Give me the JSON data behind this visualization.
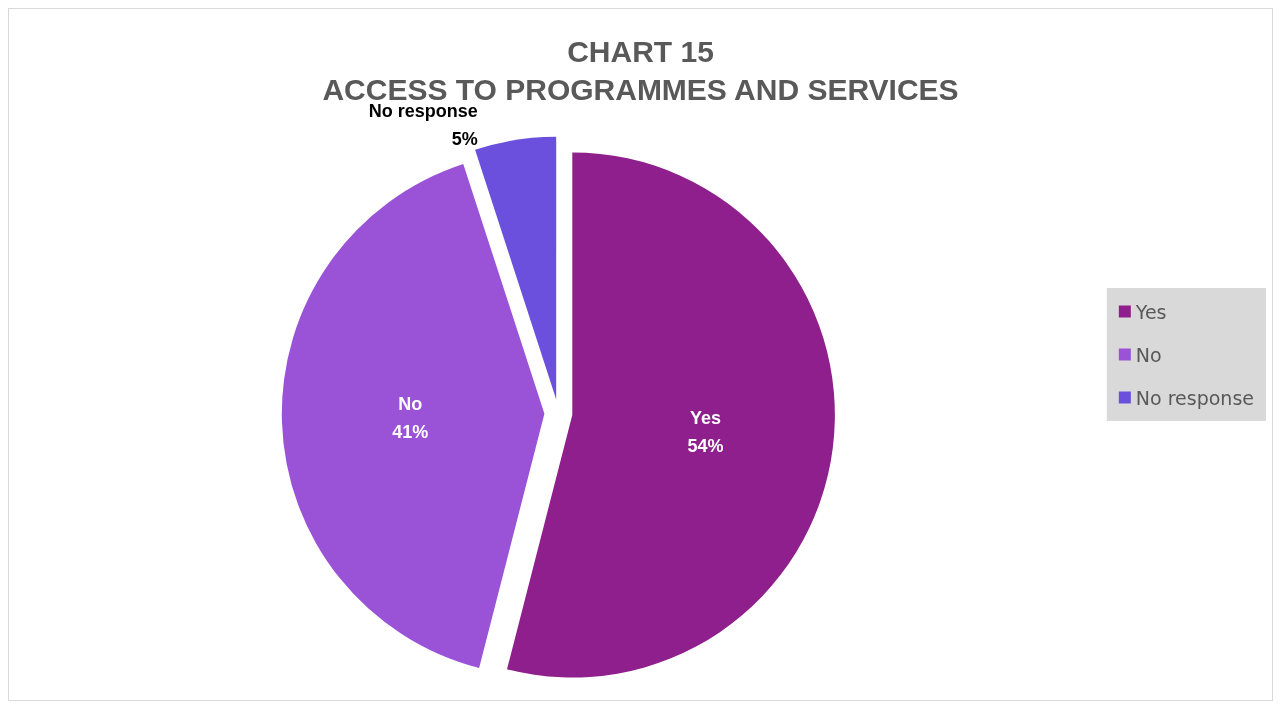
{
  "chart_data": {
    "type": "pie",
    "title": "CHART 15",
    "subtitle": "ACCESS TO PROGRAMMES AND SERVICES",
    "categories": [
      "Yes",
      "No",
      "No response"
    ],
    "values": [
      54,
      41,
      5
    ],
    "colors": [
      "#8e1f8c",
      "#9a52d6",
      "#6a50dc"
    ],
    "value_labels": [
      "54%",
      "41%",
      "5%"
    ],
    "legend": "right"
  }
}
